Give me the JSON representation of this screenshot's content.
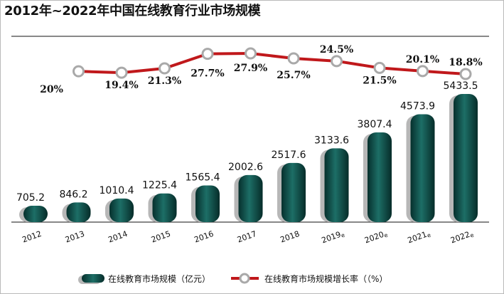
{
  "chart_data": {
    "type": "bar+line",
    "title": "2012年~2022年中国在线教育行业市场规模",
    "categories": [
      {
        "year": "2012",
        "suffix": ""
      },
      {
        "year": "2013",
        "suffix": ""
      },
      {
        "year": "2014",
        "suffix": ""
      },
      {
        "year": "2015",
        "suffix": ""
      },
      {
        "year": "2016",
        "suffix": ""
      },
      {
        "year": "2017",
        "suffix": ""
      },
      {
        "year": "2018",
        "suffix": ""
      },
      {
        "year": "2019",
        "suffix": "e"
      },
      {
        "year": "2020",
        "suffix": "e"
      },
      {
        "year": "2021",
        "suffix": "e"
      },
      {
        "year": "2022",
        "suffix": "e"
      }
    ],
    "series": [
      {
        "name": "在线教育市场规模（亿元）",
        "type": "bar",
        "values": [
          705.2,
          846.2,
          1010.4,
          1225.4,
          1565.4,
          2002.6,
          2517.6,
          3133.6,
          3807.4,
          4573.9,
          5433.5
        ],
        "labels": [
          "705.2",
          "846.2",
          "1010.4",
          "1225.4",
          "1565.4",
          "2002.6",
          "2517.6",
          "3133.6",
          "3807.4",
          "4573.9",
          "5433.5"
        ],
        "color": "#0f4f4a"
      },
      {
        "name": "在线教育市场规模增长率（（%）",
        "type": "line",
        "values": [
          null,
          20,
          19.4,
          21.3,
          27.7,
          27.9,
          25.7,
          24.5,
          21.5,
          20.1,
          18.8
        ],
        "labels": [
          "",
          "20%",
          "19.4%",
          "21.3%",
          "27.7%",
          "27.9%",
          "25.7%",
          "24.5%",
          "21.5%",
          "20.1%",
          "18.8%"
        ],
        "color": "#c0181b"
      }
    ],
    "legend_position": "bottom",
    "ylim": [
      0,
      6000
    ],
    "grid": false
  }
}
